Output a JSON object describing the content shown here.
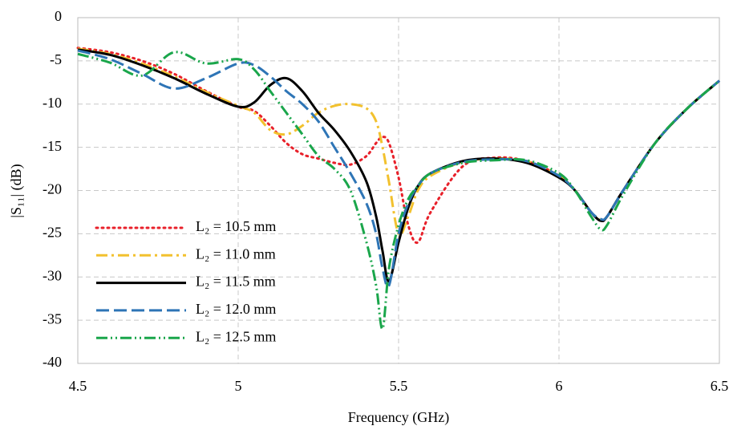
{
  "chart_data": {
    "type": "line",
    "xlabel": "Frequency (GHz)",
    "ylabel": "|S₁₁| (dB)",
    "x": [
      4.5,
      4.6,
      4.7,
      4.8,
      4.9,
      5.0,
      5.05,
      5.1,
      5.15,
      5.2,
      5.25,
      5.3,
      5.35,
      5.4,
      5.43,
      5.45,
      5.47,
      5.5,
      5.53,
      5.56,
      5.6,
      5.7,
      5.8,
      5.9,
      6.0,
      6.05,
      6.1,
      6.13,
      6.15,
      6.2,
      6.3,
      6.4,
      6.5
    ],
    "series": [
      {
        "name": "L₂ = 10.5  mm",
        "color": "#e8202a",
        "dash": "2,5",
        "values": [
          -3.5,
          -4.0,
          -5.0,
          -6.5,
          -8.5,
          -10.3,
          -10.8,
          -12.5,
          -14.5,
          -15.8,
          -16.3,
          -16.8,
          -17,
          -16,
          -14.5,
          -13.8,
          -14.5,
          -18.5,
          -24,
          -26,
          -22.5,
          -17.2,
          -16.2,
          -16.6,
          -18.3,
          -20,
          -22.5,
          -23.5,
          -23,
          -20,
          -14.5,
          -10.5,
          -7.3
        ]
      },
      {
        "name": "L₂ = 11.0  mm",
        "color": "#f2c12e",
        "dash": "14,5,3,5",
        "values": [
          -3.6,
          -4.2,
          -5.3,
          -6.8,
          -8.6,
          -10.2,
          -11,
          -13,
          -13.5,
          -12.5,
          -11,
          -10.2,
          -10,
          -10.5,
          -12,
          -15,
          -19,
          -25,
          -23,
          -20,
          -18.3,
          -16.7,
          -16.3,
          -16.6,
          -18.3,
          -20,
          -22.5,
          -23.4,
          -23,
          -20,
          -14.5,
          -10.5,
          -7.3
        ]
      },
      {
        "name": "L₂ = 11.5  mm",
        "color": "#000000",
        "dash": "",
        "values": [
          -3.7,
          -4.3,
          -5.5,
          -7,
          -8.8,
          -10.3,
          -9.8,
          -7.8,
          -7.0,
          -8.5,
          -11,
          -13,
          -15.5,
          -19,
          -23,
          -27,
          -30.5,
          -26,
          -22,
          -19.5,
          -18,
          -16.6,
          -16.3,
          -16.8,
          -18.5,
          -20,
          -22.5,
          -23.5,
          -23,
          -20,
          -14.5,
          -10.5,
          -7.3
        ]
      },
      {
        "name": "L₂ = 12.0  mm",
        "color": "#2e75b6",
        "dash": "16,6",
        "values": [
          -3.8,
          -4.8,
          -6.5,
          -8.2,
          -7,
          -5.3,
          -5.5,
          -6.8,
          -8.5,
          -10,
          -12,
          -15,
          -18,
          -21.5,
          -25,
          -29,
          -31,
          -25,
          -21.5,
          -19.5,
          -18,
          -16.7,
          -16.4,
          -16.6,
          -18.3,
          -20,
          -22.5,
          -23.3,
          -23,
          -20,
          -14.5,
          -10.5,
          -7.3
        ]
      },
      {
        "name": "L₂ = 12.5  mm",
        "color": "#1aa64b",
        "dash": "14,4,2,4,2,4",
        "values": [
          -4.2,
          -5.2,
          -6.7,
          -4.0,
          -5.3,
          -4.8,
          -6,
          -8.5,
          -11,
          -13.5,
          -16,
          -17.5,
          -20,
          -26,
          -31,
          -36,
          -29,
          -24,
          -21,
          -19.5,
          -18,
          -16.8,
          -16.5,
          -16.5,
          -18,
          -20,
          -23,
          -24.5,
          -24,
          -20.5,
          -14.5,
          -10.5,
          -7.3
        ]
      }
    ],
    "xlim": [
      4.5,
      6.5
    ],
    "xticks": [
      4.5,
      5,
      5.5,
      6,
      6.5
    ],
    "ylim": [
      -40,
      0
    ],
    "yticks": [
      0,
      -5,
      -10,
      -15,
      -20,
      -25,
      -30,
      -35,
      -40
    ],
    "grid": true,
    "legend": "lower left"
  }
}
